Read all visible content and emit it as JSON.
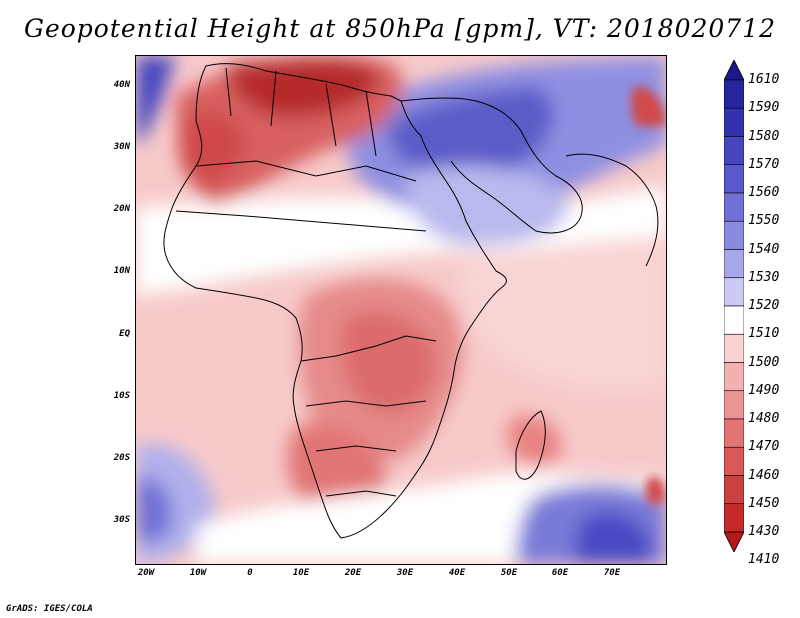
{
  "title": "Geopotential Height at 850hPa [gpm], VT: 2018020712",
  "credit": "GrADS: IGES/COLA",
  "map": {
    "variable": "Geopotential Height",
    "level": "850hPa",
    "units": "gpm",
    "valid_time": "2018020712",
    "lat_labels": [
      "40N",
      "30N",
      "20N",
      "10N",
      "EQ",
      "10S",
      "20S",
      "30S"
    ],
    "lon_labels": [
      "20W",
      "10W",
      "0",
      "10E",
      "20E",
      "30E",
      "40E",
      "50E",
      "60E",
      "70E"
    ]
  },
  "colorbar": {
    "labels": [
      "1610",
      "1590",
      "1580",
      "1570",
      "1560",
      "1550",
      "1540",
      "1530",
      "1520",
      "1510",
      "1500",
      "1490",
      "1480",
      "1470",
      "1460",
      "1450",
      "1430",
      "1410"
    ],
    "colors": [
      "#1a1a8c",
      "#25259e",
      "#3333b0",
      "#4646bf",
      "#5a5acc",
      "#7070d6",
      "#8a8ae0",
      "#a7a7ea",
      "#cacaf2",
      "#ffffff",
      "#f9d2d2",
      "#f2b2b2",
      "#eb9494",
      "#e27474",
      "#d95858",
      "#cf4040",
      "#c42a2a",
      "#b31b1b"
    ]
  }
}
